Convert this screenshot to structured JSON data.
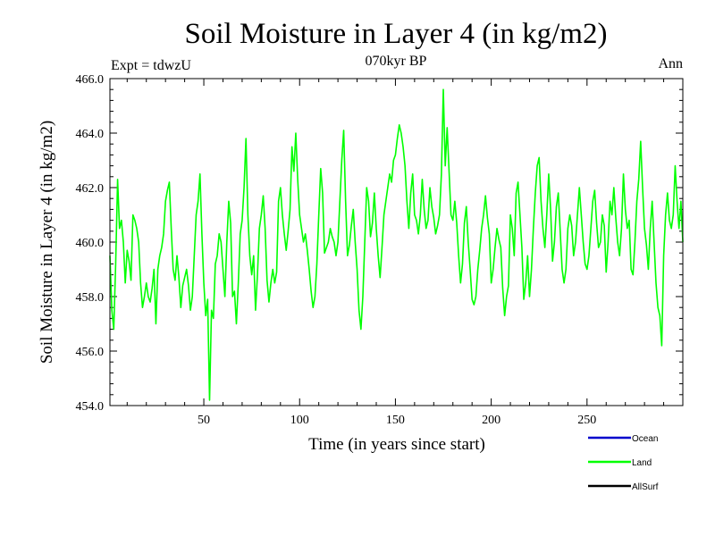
{
  "chart_data": {
    "type": "line",
    "title": "Soil Moisture in Layer 4 (in kg/m2)",
    "subtitle": "070kyr BP",
    "left_note": "Expt = tdwzU",
    "right_note": "Ann",
    "xlabel": "Time (in years since start)",
    "ylabel": "Soil Moisture in Layer 4 (in kg/m2)",
    "xlim": [
      1,
      300
    ],
    "ylim": [
      454.0,
      466.0
    ],
    "x_ticks": [
      50,
      100,
      150,
      200,
      250
    ],
    "y_ticks": [
      "454.0",
      "456.0",
      "458.0",
      "460.0",
      "462.0",
      "464.0",
      "466.0"
    ],
    "legend_position": "bottom-right",
    "legend": [
      {
        "name": "Ocean",
        "color": "#0000cc"
      },
      {
        "name": "Land",
        "color": "#00ff00"
      },
      {
        "name": "AllSurf",
        "color": "#000000"
      }
    ],
    "series": [
      {
        "name": "Land",
        "color": "#00ff00",
        "x_start": 1,
        "x_step": 1,
        "values": [
          459.5,
          457.5,
          456.8,
          459.2,
          462.3,
          460.5,
          460.8,
          460.0,
          458.5,
          459.7,
          459.3,
          458.6,
          461.0,
          460.8,
          460.5,
          460.0,
          458.5,
          457.6,
          458.0,
          458.5,
          458.0,
          457.8,
          458.3,
          459.0,
          457.0,
          459.0,
          459.5,
          459.8,
          460.3,
          461.5,
          461.9,
          462.2,
          460.5,
          459.0,
          458.6,
          459.5,
          458.7,
          457.6,
          458.4,
          458.7,
          459.0,
          458.4,
          457.5,
          458.0,
          459.5,
          461.0,
          461.5,
          462.5,
          460.3,
          458.5,
          457.3,
          457.9,
          454.2,
          457.5,
          457.2,
          459.2,
          459.5,
          460.3,
          460.0,
          459.0,
          458.0,
          460.0,
          461.5,
          460.7,
          458.0,
          458.2,
          457.0,
          458.5,
          460.3,
          460.8,
          462.0,
          463.8,
          461.0,
          459.5,
          458.8,
          459.5,
          457.5,
          458.8,
          460.5,
          461.0,
          461.7,
          460.5,
          458.6,
          457.8,
          458.5,
          459.0,
          458.5,
          458.9,
          461.5,
          462.0,
          461.0,
          460.3,
          459.7,
          460.4,
          461.2,
          463.5,
          462.6,
          464.0,
          462.3,
          461.0,
          460.5,
          460.0,
          460.3,
          459.7,
          459.0,
          458.2,
          457.6,
          458.0,
          459.2,
          461.0,
          462.7,
          461.8,
          459.6,
          459.8,
          460.0,
          460.5,
          460.2,
          460.0,
          459.5,
          460.0,
          461.5,
          463.0,
          464.1,
          461.5,
          459.5,
          459.9,
          460.6,
          461.2,
          460.0,
          459.0,
          457.5,
          456.8,
          458.0,
          460.0,
          462.0,
          461.5,
          460.2,
          460.7,
          461.8,
          460.5,
          459.5,
          458.7,
          459.8,
          461.0,
          461.5,
          462.0,
          462.5,
          462.2,
          463.0,
          463.2,
          463.8,
          464.3,
          464.0,
          463.5,
          462.8,
          461.5,
          460.5,
          461.8,
          462.5,
          461.0,
          460.8,
          460.3,
          461.0,
          462.3,
          461.2,
          460.5,
          460.8,
          462.0,
          461.3,
          460.9,
          460.3,
          460.6,
          461.0,
          462.5,
          465.6,
          462.8,
          464.2,
          462.6,
          461.0,
          460.8,
          461.5,
          460.7,
          459.5,
          458.5,
          459.2,
          460.7,
          461.3,
          460.0,
          459.0,
          457.9,
          457.7,
          458.0,
          459.0,
          459.7,
          460.5,
          461.0,
          461.7,
          460.9,
          460.3,
          458.5,
          459.0,
          459.8,
          460.5,
          460.1,
          459.8,
          458.3,
          457.3,
          458.0,
          458.4,
          461.0,
          460.5,
          459.5,
          461.8,
          462.2,
          461.0,
          459.8,
          457.9,
          458.5,
          459.5,
          458.0,
          459.0,
          460.5,
          461.8,
          462.8,
          463.1,
          461.5,
          460.5,
          459.8,
          461.0,
          462.5,
          461.2,
          459.3,
          460.0,
          461.3,
          461.8,
          460.4,
          459.0,
          458.5,
          459.0,
          460.5,
          461.0,
          460.6,
          459.5,
          460.0,
          461.0,
          462.0,
          461.0,
          460.0,
          459.2,
          459.0,
          459.5,
          460.5,
          461.5,
          461.9,
          460.7,
          459.8,
          460.0,
          461.0,
          460.6,
          458.9,
          460.0,
          461.5,
          461.0,
          462.0,
          460.9,
          460.0,
          459.5,
          460.5,
          462.5,
          461.2,
          460.5,
          460.8,
          459.0,
          458.8,
          460.0,
          461.5,
          462.3,
          463.7,
          462.0,
          460.5,
          459.9,
          459.0,
          460.5,
          461.5,
          460.0,
          458.5,
          457.6,
          457.3,
          456.2,
          459.5,
          461.0,
          461.8,
          460.8,
          460.5,
          461.0,
          462.8,
          461.5,
          460.5,
          461.5,
          460.0
        ]
      }
    ]
  }
}
